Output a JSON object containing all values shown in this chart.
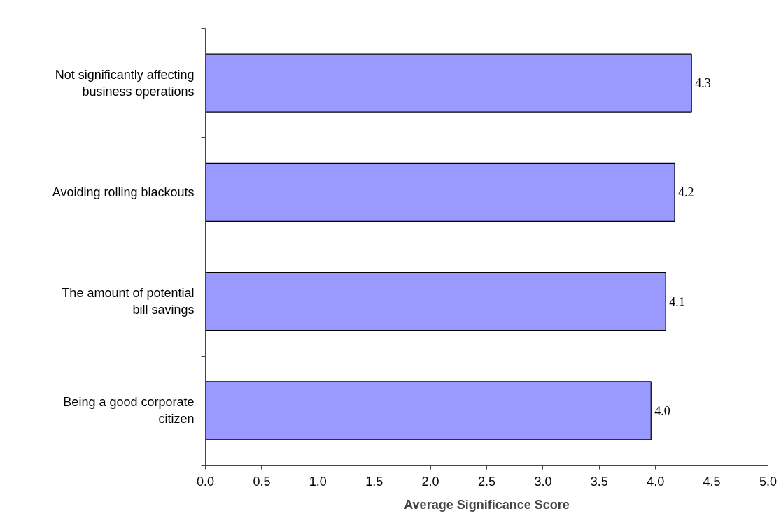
{
  "chart_data": {
    "type": "bar",
    "orientation": "horizontal",
    "xlabel": "Average Significance Score",
    "categories": [
      "Not significantly affecting business operations",
      "Avoiding rolling blackouts",
      "The amount of potential bill savings",
      "Being a good corporate citizen"
    ],
    "values": [
      4.32,
      4.17,
      4.09,
      3.96
    ],
    "value_labels": [
      "4.3",
      "4.2",
      "4.1",
      "4.0"
    ],
    "color": "#9999ff",
    "xlim": [
      0,
      5
    ],
    "xticks": [
      {
        "value": 0,
        "label": "0.0"
      },
      {
        "value": 0.5,
        "label": "0.5"
      },
      {
        "value": 1,
        "label": "1.0"
      },
      {
        "value": 1.5,
        "label": "1.5"
      },
      {
        "value": 2,
        "label": "2.0"
      },
      {
        "value": 2.5,
        "label": "2.5"
      },
      {
        "value": 3,
        "label": "3.0"
      },
      {
        "value": 3.5,
        "label": "3.5"
      },
      {
        "value": 4,
        "label": "4.0"
      },
      {
        "value": 4.5,
        "label": "4.5"
      },
      {
        "value": 5,
        "label": "5.0"
      }
    ],
    "grid": false
  }
}
